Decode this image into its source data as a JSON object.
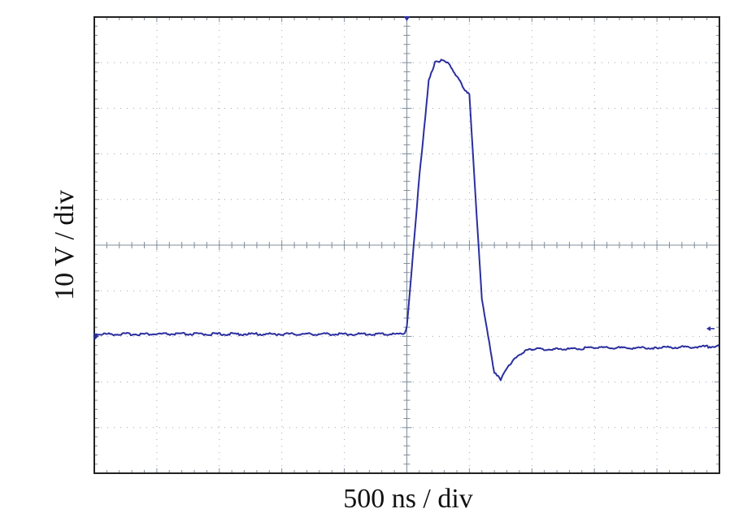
{
  "chart_data": {
    "type": "line",
    "title": "",
    "xlabel": "500 ns / div",
    "ylabel": "10 V / div",
    "x_unit": "div",
    "y_unit": "div",
    "xlim": [
      -5,
      5
    ],
    "ylim": [
      -5,
      5
    ],
    "grid": true,
    "center_crosshair": true,
    "colors": {
      "trace": "#2b2f9e",
      "grid": "#9aa6b2",
      "frame": "#222222"
    },
    "markers": {
      "trigger": "top-center",
      "ground_level_div": -2.0,
      "ground_level_side": "right"
    },
    "series": [
      {
        "x": [
          -5.0,
          -0.05,
          0.0,
          0.2,
          0.35,
          0.45,
          0.55,
          0.65,
          0.8,
          0.95,
          1.0,
          1.1,
          1.2,
          1.4,
          1.5,
          1.65,
          1.85,
          2.0,
          2.5,
          3.0,
          4.0,
          5.0
        ],
        "y": [
          -1.95,
          -1.95,
          -1.8,
          1.5,
          3.6,
          4.0,
          4.05,
          4.0,
          3.7,
          3.35,
          3.3,
          1.0,
          -1.2,
          -2.8,
          -2.95,
          -2.6,
          -2.35,
          -2.28,
          -2.28,
          -2.25,
          -2.25,
          -2.22
        ]
      }
    ]
  }
}
